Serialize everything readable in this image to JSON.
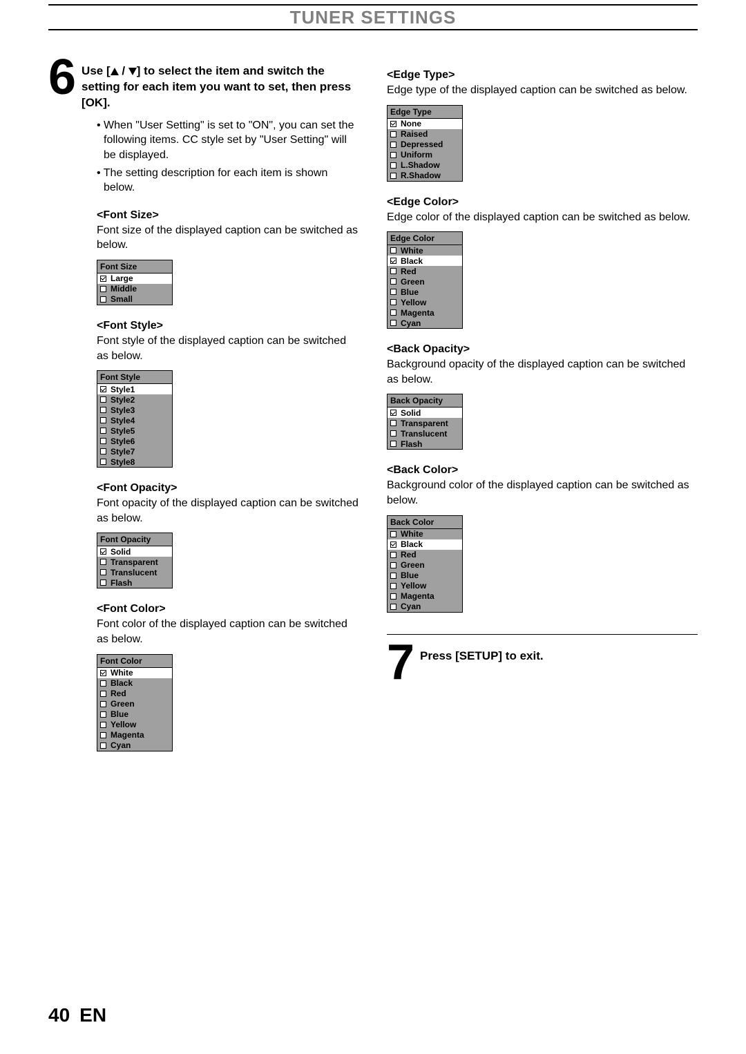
{
  "header": {
    "title": "TUNER SETTINGS"
  },
  "step6": {
    "num": "6",
    "text_pre": "Use [",
    "text_mid": " / ",
    "text_post": "] to select the item and switch the setting for each item you want to set, then press [OK].",
    "bullets": [
      "When \"User Setting\" is set to \"ON\", you can set the following items. CC style set by \"User Setting\" will be displayed.",
      "The setting description for each item is shown below."
    ]
  },
  "sections_left": [
    {
      "title": "<Font Size>",
      "desc": "Font size of the displayed caption can be switched as below.",
      "menu_title": "Font Size",
      "options": [
        {
          "label": "Large",
          "checked": true,
          "selected": true
        },
        {
          "label": "Middle",
          "checked": false,
          "selected": false
        },
        {
          "label": "Small",
          "checked": false,
          "selected": false
        }
      ]
    },
    {
      "title": "<Font Style>",
      "desc": "Font style of the displayed caption can be switched as below.",
      "menu_title": "Font Style",
      "options": [
        {
          "label": "Style1",
          "checked": true,
          "selected": true
        },
        {
          "label": "Style2",
          "checked": false,
          "selected": false
        },
        {
          "label": "Style3",
          "checked": false,
          "selected": false
        },
        {
          "label": "Style4",
          "checked": false,
          "selected": false
        },
        {
          "label": "Style5",
          "checked": false,
          "selected": false
        },
        {
          "label": "Style6",
          "checked": false,
          "selected": false
        },
        {
          "label": "Style7",
          "checked": false,
          "selected": false
        },
        {
          "label": "Style8",
          "checked": false,
          "selected": false
        }
      ]
    },
    {
      "title": "<Font Opacity>",
      "desc": "Font opacity of the displayed caption can be switched as below.",
      "menu_title": "Font Opacity",
      "options": [
        {
          "label": "Solid",
          "checked": true,
          "selected": true
        },
        {
          "label": "Transparent",
          "checked": false,
          "selected": false
        },
        {
          "label": "Translucent",
          "checked": false,
          "selected": false
        },
        {
          "label": "Flash",
          "checked": false,
          "selected": false
        }
      ]
    },
    {
      "title": "<Font Color>",
      "desc": "Font color of the displayed caption can be switched as below.",
      "menu_title": "Font Color",
      "options": [
        {
          "label": "White",
          "checked": true,
          "selected": true
        },
        {
          "label": "Black",
          "checked": false,
          "selected": false
        },
        {
          "label": "Red",
          "checked": false,
          "selected": false
        },
        {
          "label": "Green",
          "checked": false,
          "selected": false
        },
        {
          "label": "Blue",
          "checked": false,
          "selected": false
        },
        {
          "label": "Yellow",
          "checked": false,
          "selected": false
        },
        {
          "label": "Magenta",
          "checked": false,
          "selected": false
        },
        {
          "label": "Cyan",
          "checked": false,
          "selected": false
        }
      ]
    }
  ],
  "sections_right": [
    {
      "title": "<Edge Type>",
      "desc": "Edge type of the displayed caption can be switched as below.",
      "menu_title": "Edge Type",
      "options": [
        {
          "label": "None",
          "checked": true,
          "selected": true
        },
        {
          "label": "Raised",
          "checked": false,
          "selected": false
        },
        {
          "label": "Depressed",
          "checked": false,
          "selected": false
        },
        {
          "label": "Uniform",
          "checked": false,
          "selected": false
        },
        {
          "label": "L.Shadow",
          "checked": false,
          "selected": false
        },
        {
          "label": "R.Shadow",
          "checked": false,
          "selected": false
        }
      ]
    },
    {
      "title": "<Edge Color>",
      "desc": "Edge color of the displayed caption can be switched as below.",
      "menu_title": "Edge Color",
      "options": [
        {
          "label": "White",
          "checked": false,
          "selected": false
        },
        {
          "label": "Black",
          "checked": true,
          "selected": true
        },
        {
          "label": "Red",
          "checked": false,
          "selected": false
        },
        {
          "label": "Green",
          "checked": false,
          "selected": false
        },
        {
          "label": "Blue",
          "checked": false,
          "selected": false
        },
        {
          "label": "Yellow",
          "checked": false,
          "selected": false
        },
        {
          "label": "Magenta",
          "checked": false,
          "selected": false
        },
        {
          "label": "Cyan",
          "checked": false,
          "selected": false
        }
      ]
    },
    {
      "title": "<Back Opacity>",
      "desc": "Background opacity of the displayed caption can be switched as below.",
      "menu_title": "Back Opacity",
      "options": [
        {
          "label": "Solid",
          "checked": true,
          "selected": true
        },
        {
          "label": "Transparent",
          "checked": false,
          "selected": false
        },
        {
          "label": "Translucent",
          "checked": false,
          "selected": false
        },
        {
          "label": "Flash",
          "checked": false,
          "selected": false
        }
      ]
    },
    {
      "title": "<Back Color>",
      "desc": "Background color of the displayed caption can be switched as below.",
      "menu_title": "Back Color",
      "options": [
        {
          "label": "White",
          "checked": false,
          "selected": false
        },
        {
          "label": "Black",
          "checked": true,
          "selected": true
        },
        {
          "label": "Red",
          "checked": false,
          "selected": false
        },
        {
          "label": "Green",
          "checked": false,
          "selected": false
        },
        {
          "label": "Blue",
          "checked": false,
          "selected": false
        },
        {
          "label": "Yellow",
          "checked": false,
          "selected": false
        },
        {
          "label": "Magenta",
          "checked": false,
          "selected": false
        },
        {
          "label": "Cyan",
          "checked": false,
          "selected": false
        }
      ]
    }
  ],
  "step7": {
    "num": "7",
    "text": "Press [SETUP] to exit."
  },
  "footer": {
    "page": "40",
    "lang": "EN"
  },
  "style": {
    "menu_bg": "#a0a0a0",
    "selected_bg": "#ffffff",
    "header_color": "#808080"
  }
}
